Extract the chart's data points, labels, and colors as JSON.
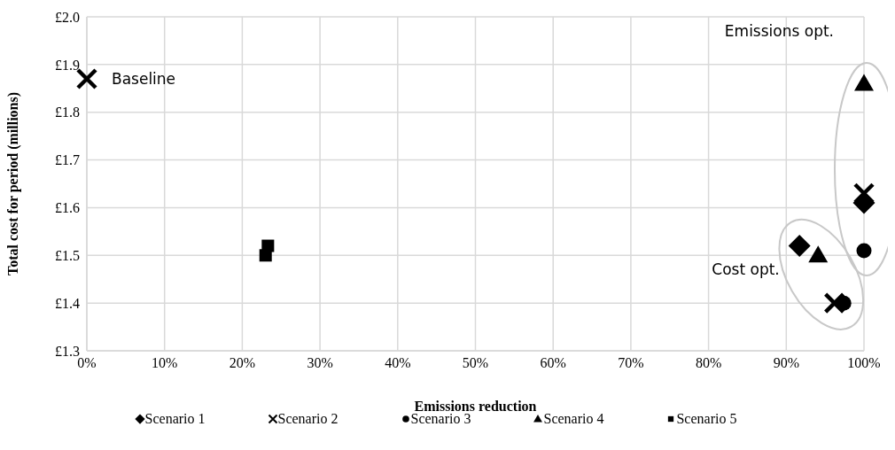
{
  "chart_data": {
    "type": "scatter",
    "xlabel": "Emissions reduction",
    "ylabel": "Total cost for period (millions)",
    "series": [
      {
        "name": "Scenario 1",
        "color": "#000000",
        "marker": "diamond",
        "x": [
          91.7,
          100
        ],
        "values": [
          1.52,
          1.61
        ]
      },
      {
        "name": "Scenario 2",
        "color": "#000000",
        "marker": "cross",
        "x": [
          0,
          96.2,
          100
        ],
        "values": [
          1.87,
          1.4,
          1.63
        ]
      },
      {
        "name": "Scenario 3",
        "color": "#000000",
        "marker": "circle",
        "x": [
          97.4,
          100
        ],
        "values": [
          1.4,
          1.51
        ]
      },
      {
        "name": "Scenario 4",
        "color": "#000000",
        "marker": "triangle",
        "x": [
          94.1,
          100
        ],
        "values": [
          1.5,
          1.86
        ]
      },
      {
        "name": "Scenario 5",
        "color": "#000000",
        "marker": "square",
        "x": [
          23.3,
          23.0
        ],
        "values": [
          1.52,
          1.5
        ]
      }
    ],
    "xlim": [
      0,
      100
    ],
    "xticks": [
      {
        "value": 0,
        "label": "0%"
      },
      {
        "value": 10,
        "label": "10%"
      },
      {
        "value": 20,
        "label": "20%"
      },
      {
        "value": 30,
        "label": "30%"
      },
      {
        "value": 40,
        "label": "40%"
      },
      {
        "value": 50,
        "label": "50%"
      },
      {
        "value": 60,
        "label": "60%"
      },
      {
        "value": 70,
        "label": "70%"
      },
      {
        "value": 80,
        "label": "80%"
      },
      {
        "value": 90,
        "label": "90%"
      },
      {
        "value": 100,
        "label": "100%"
      }
    ],
    "ylim": [
      1.3,
      2.0
    ],
    "yticks": [
      {
        "value": 1.3,
        "label": "£1.3"
      },
      {
        "value": 1.4,
        "label": "£1.4"
      },
      {
        "value": 1.5,
        "label": "£1.5"
      },
      {
        "value": 1.6,
        "label": "£1.6"
      },
      {
        "value": 1.7,
        "label": "£1.7"
      },
      {
        "value": 1.8,
        "label": "£1.8"
      },
      {
        "value": 1.9,
        "label": "£1.9"
      },
      {
        "value": 2.0,
        "label": "£2.0"
      }
    ],
    "annotations": [
      {
        "text": "Baseline",
        "x": 0,
        "y": 1.87
      },
      "Emissions opt.",
      "Cost opt."
    ],
    "grid": true,
    "legend": "bottom"
  }
}
